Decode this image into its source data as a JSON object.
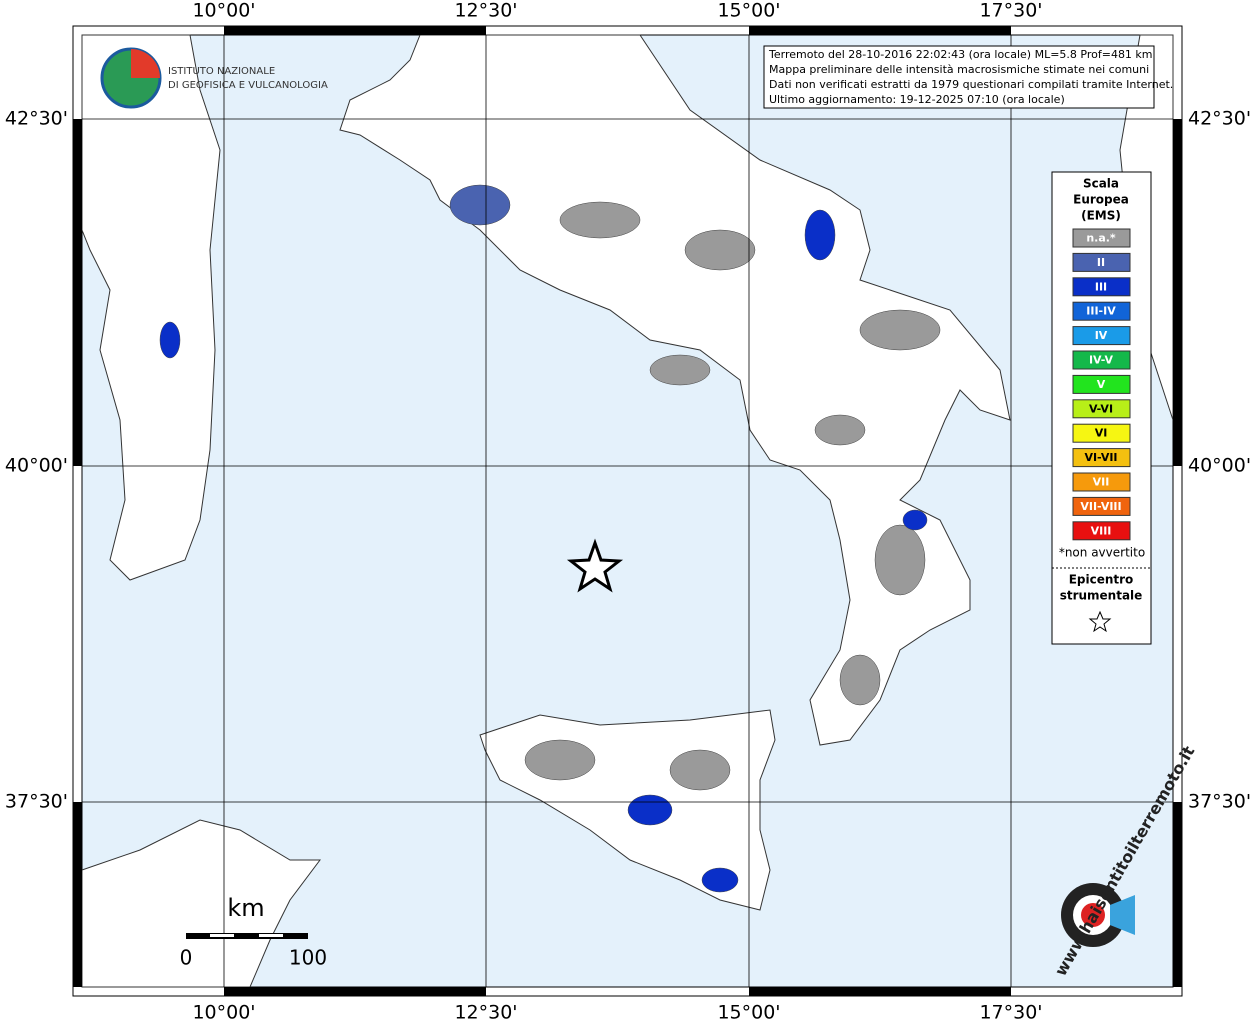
{
  "map": {
    "longitude_labels": [
      "10°00'",
      "12°30'",
      "15°00'",
      "17°30'"
    ],
    "latitude_labels": [
      "42°30'",
      "40°00'",
      "37°30'"
    ],
    "info_box": [
      "Terremoto del 28-10-2016 22:02:43 (ora locale) ML=5.8 Prof=481 km",
      "Mappa preliminare delle intensità macrosismiche stimate nei comuni",
      "Dati non verificati estratti da 1979 questionari compilati tramite Internet.",
      "Ultimo aggiornamento: 19-12-2025 07:10 (ora locale)"
    ],
    "institute_logo": [
      "ISTITUTO NAZIONALE",
      "DI GEOFISICA E VULCANOLOGIA"
    ],
    "legend": {
      "title": [
        "Scala",
        "Europea",
        "(EMS)"
      ],
      "classes": [
        {
          "label": "n.a.*",
          "color": "#9a9a9a"
        },
        {
          "label": "II",
          "color": "#4a63b0"
        },
        {
          "label": "III",
          "color": "#0a2fc8"
        },
        {
          "label": "III-IV",
          "color": "#1164d8"
        },
        {
          "label": "IV",
          "color": "#1a9be8"
        },
        {
          "label": "IV-V",
          "color": "#14b84a"
        },
        {
          "label": "V",
          "color": "#22e41e"
        },
        {
          "label": "V-VI",
          "color": "#b8ef18"
        },
        {
          "label": "VI",
          "color": "#f6f612"
        },
        {
          "label": "VI-VII",
          "color": "#f4c010"
        },
        {
          "label": "VII",
          "color": "#f69a0c"
        },
        {
          "label": "VII-VIII",
          "color": "#f0640e"
        },
        {
          "label": "VIII",
          "color": "#e81010"
        }
      ],
      "note": "*non avvertito",
      "epicentre_label": [
        "Epicentro",
        "strumentale"
      ]
    },
    "scale_bar": {
      "unit": "km",
      "labels": [
        0,
        100
      ]
    },
    "site_logo": "www.haisentitoilterremoto.it"
  }
}
